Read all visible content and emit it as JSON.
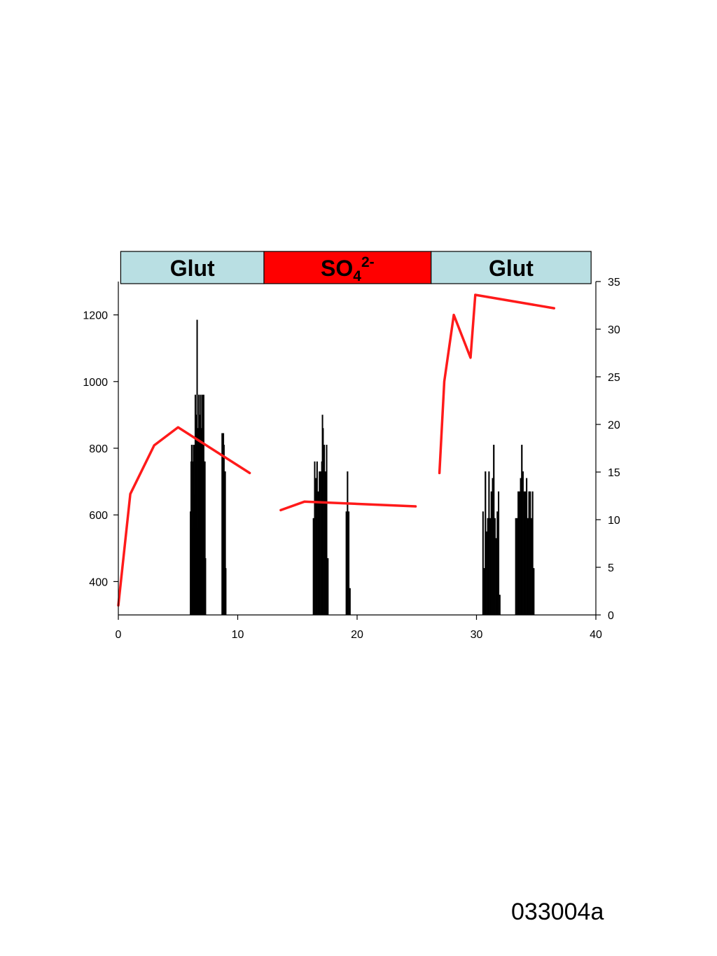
{
  "chart_data": {
    "type": "bar+line",
    "xlim": [
      0,
      40
    ],
    "x_ticks": [
      0,
      10,
      20,
      30,
      40
    ],
    "y_left": {
      "lim": [
        300,
        1300
      ],
      "ticks": [
        400,
        600,
        800,
        1000,
        1200
      ]
    },
    "y_right": {
      "lim": [
        0,
        35
      ],
      "ticks": [
        0,
        5,
        10,
        15,
        20,
        25,
        30,
        35
      ]
    },
    "conditions": [
      {
        "label": "Glut",
        "sub": "",
        "sup": "",
        "x_start": 0.2,
        "x_end": 12.2,
        "color": "#b9dfe3"
      },
      {
        "label": "SO",
        "sub": "4",
        "sup": "2-",
        "x_start": 12.2,
        "x_end": 26.2,
        "color": "#ff0000"
      },
      {
        "label": "Glut",
        "sub": "",
        "sup": "",
        "x_start": 26.2,
        "x_end": 39.6,
        "color": "#b9dfe3"
      }
    ],
    "bars": {
      "color": "#000000",
      "values": [
        [
          6.05,
          610
        ],
        [
          6.1,
          760
        ],
        [
          6.15,
          810
        ],
        [
          6.2,
          560
        ],
        [
          6.25,
          760
        ],
        [
          6.3,
          810
        ],
        [
          6.35,
          660
        ],
        [
          6.4,
          810
        ],
        [
          6.45,
          960
        ],
        [
          6.5,
          760
        ],
        [
          6.55,
          900
        ],
        [
          6.6,
          1185
        ],
        [
          6.65,
          560
        ],
        [
          6.7,
          860
        ],
        [
          6.75,
          960
        ],
        [
          6.8,
          710
        ],
        [
          6.85,
          900
        ],
        [
          6.9,
          960
        ],
        [
          6.95,
          760
        ],
        [
          7.0,
          860
        ],
        [
          7.05,
          960
        ],
        [
          7.1,
          660
        ],
        [
          7.15,
          960
        ],
        [
          7.2,
          760
        ],
        [
          7.25,
          760
        ],
        [
          7.3,
          470
        ],
        [
          8.7,
          845
        ],
        [
          8.75,
          810
        ],
        [
          8.8,
          845
        ],
        [
          8.85,
          810
        ],
        [
          8.9,
          730
        ],
        [
          8.95,
          730
        ],
        [
          9.0,
          440
        ],
        [
          16.35,
          590
        ],
        [
          16.45,
          760
        ],
        [
          16.55,
          710
        ],
        [
          16.65,
          760
        ],
        [
          16.75,
          670
        ],
        [
          16.85,
          730
        ],
        [
          16.95,
          730
        ],
        [
          17.05,
          760
        ],
        [
          17.1,
          900
        ],
        [
          17.15,
          860
        ],
        [
          17.25,
          810
        ],
        [
          17.35,
          730
        ],
        [
          17.45,
          810
        ],
        [
          17.55,
          470
        ],
        [
          19.1,
          610
        ],
        [
          19.2,
          730
        ],
        [
          19.3,
          610
        ],
        [
          19.4,
          380
        ],
        [
          30.55,
          610
        ],
        [
          30.65,
          440
        ],
        [
          30.75,
          730
        ],
        [
          30.85,
          550
        ],
        [
          30.95,
          590
        ],
        [
          31.05,
          730
        ],
        [
          31.15,
          590
        ],
        [
          31.25,
          670
        ],
        [
          31.35,
          710
        ],
        [
          31.45,
          810
        ],
        [
          31.55,
          590
        ],
        [
          31.65,
          530
        ],
        [
          31.75,
          610
        ],
        [
          31.85,
          670
        ],
        [
          31.95,
          360
        ],
        [
          33.3,
          590
        ],
        [
          33.4,
          590
        ],
        [
          33.5,
          670
        ],
        [
          33.6,
          670
        ],
        [
          33.7,
          710
        ],
        [
          33.8,
          810
        ],
        [
          33.9,
          730
        ],
        [
          34.0,
          670
        ],
        [
          34.1,
          670
        ],
        [
          34.2,
          710
        ],
        [
          34.3,
          590
        ],
        [
          34.4,
          670
        ],
        [
          34.5,
          670
        ],
        [
          34.6,
          590
        ],
        [
          34.7,
          670
        ],
        [
          34.8,
          440
        ]
      ]
    },
    "series": [
      {
        "color": "#ff1a1a",
        "x": [
          0,
          1,
          3,
          5,
          11
        ],
        "y": [
          1,
          12.7,
          17.8,
          19.7,
          14.9
        ]
      },
      {
        "color": "#ff1a1a",
        "x": [
          13.6,
          15.6,
          24.9
        ],
        "y": [
          11,
          11.9,
          11.4
        ]
      },
      {
        "color": "#ff1a1a",
        "x": [
          26.9,
          27.3,
          28.1,
          29.5,
          29.9,
          36.5
        ],
        "y": [
          14.9,
          24.5,
          31.5,
          27,
          33.6,
          32.2
        ]
      }
    ]
  },
  "footer": {
    "id": "033004a"
  }
}
